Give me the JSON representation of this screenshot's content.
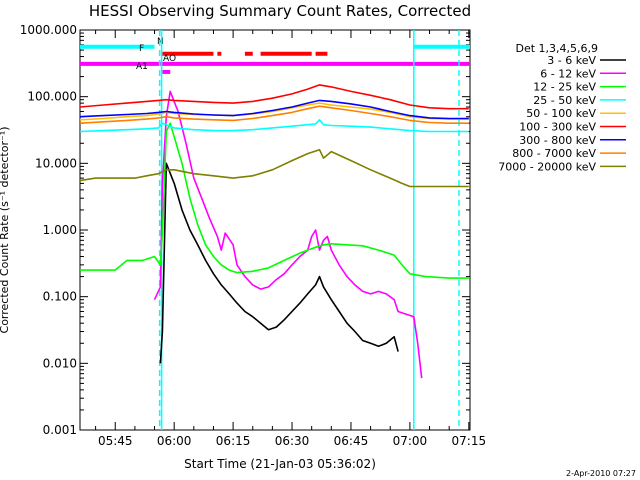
{
  "chart_data": {
    "type": "line",
    "title": "HESSI Observing Summary Count Rates, Corrected",
    "xlabel": "Start Time (21-Jan-03 05:36:02)",
    "ylabel": "Corrected Count Rate (s⁻¹ detector⁻¹)",
    "date_stamp": "2-Apr-2010 07:27",
    "y_scale": "log",
    "ylim": [
      0.001,
      1000
    ],
    "xlim_minutes": [
      36.03,
      135.3
    ],
    "x_ticks": [
      {
        "label": "05:45",
        "min": 45
      },
      {
        "label": "06:00",
        "min": 60
      },
      {
        "label": "06:15",
        "min": 75
      },
      {
        "label": "06:30",
        "min": 90
      },
      {
        "label": "06:45",
        "min": 105
      },
      {
        "label": "07:00",
        "min": 120
      },
      {
        "label": "07:15",
        "min": 135
      }
    ],
    "y_ticks": [
      {
        "label": "0.001",
        "value": 0.001
      },
      {
        "label": "0.010",
        "value": 0.01
      },
      {
        "label": "0.100",
        "value": 0.1
      },
      {
        "label": "1.000",
        "value": 1
      },
      {
        "label": "10.000",
        "value": 10
      },
      {
        "label": "100.000",
        "value": 100
      },
      {
        "label": "1000.000",
        "value": 1000
      }
    ],
    "legend_title": "Det 1,3,4,5,6,9",
    "legend_position": "right",
    "series": [
      {
        "name": "3 - 6 keV",
        "color": "#000000",
        "points": [
          [
            56.5,
            0.01
          ],
          [
            57,
            0.03
          ],
          [
            58,
            10
          ],
          [
            60,
            5
          ],
          [
            62,
            2
          ],
          [
            64,
            1
          ],
          [
            66,
            0.6
          ],
          [
            68,
            0.35
          ],
          [
            70,
            0.22
          ],
          [
            72,
            0.15
          ],
          [
            74,
            0.11
          ],
          [
            76,
            0.08
          ],
          [
            78,
            0.06
          ],
          [
            80,
            0.05
          ],
          [
            82,
            0.04
          ],
          [
            84,
            0.032
          ],
          [
            86,
            0.035
          ],
          [
            88,
            0.045
          ],
          [
            90,
            0.06
          ],
          [
            92,
            0.08
          ],
          [
            94,
            0.11
          ],
          [
            96,
            0.15
          ],
          [
            97,
            0.2
          ],
          [
            98,
            0.14
          ],
          [
            100,
            0.09
          ],
          [
            102,
            0.06
          ],
          [
            104,
            0.04
          ],
          [
            106,
            0.03
          ],
          [
            108,
            0.022
          ],
          [
            110,
            0.02
          ],
          [
            112,
            0.018
          ],
          [
            114,
            0.02
          ],
          [
            116,
            0.025
          ],
          [
            117,
            0.015
          ]
        ]
      },
      {
        "name": "6 - 12 keV",
        "color": "#ff00ff",
        "points": [
          [
            55,
            0.09
          ],
          [
            56.5,
            0.14
          ],
          [
            57,
            5
          ],
          [
            58,
            50
          ],
          [
            59,
            120
          ],
          [
            61,
            60
          ],
          [
            63,
            20
          ],
          [
            65,
            6
          ],
          [
            67,
            3
          ],
          [
            69,
            1.5
          ],
          [
            71,
            0.8
          ],
          [
            72,
            0.5
          ],
          [
            73,
            0.9
          ],
          [
            75,
            0.6
          ],
          [
            76,
            0.3
          ],
          [
            78,
            0.2
          ],
          [
            80,
            0.15
          ],
          [
            82,
            0.13
          ],
          [
            84,
            0.14
          ],
          [
            86,
            0.18
          ],
          [
            88,
            0.22
          ],
          [
            90,
            0.3
          ],
          [
            92,
            0.4
          ],
          [
            94,
            0.5
          ],
          [
            95,
            0.8
          ],
          [
            96,
            1.0
          ],
          [
            97,
            0.5
          ],
          [
            98,
            0.7
          ],
          [
            99,
            0.8
          ],
          [
            100,
            0.5
          ],
          [
            102,
            0.3
          ],
          [
            104,
            0.2
          ],
          [
            106,
            0.15
          ],
          [
            108,
            0.12
          ],
          [
            110,
            0.11
          ],
          [
            112,
            0.12
          ],
          [
            114,
            0.11
          ],
          [
            116,
            0.09
          ],
          [
            117,
            0.06
          ],
          [
            121,
            0.05
          ],
          [
            122,
            0.02
          ],
          [
            123,
            0.006
          ]
        ]
      },
      {
        "name": "12 - 25 keV",
        "color": "#00ff00",
        "points": [
          [
            36.03,
            0.25
          ],
          [
            40,
            0.25
          ],
          [
            45,
            0.25
          ],
          [
            48,
            0.35
          ],
          [
            52,
            0.35
          ],
          [
            55,
            0.4
          ],
          [
            56.5,
            0.3
          ],
          [
            57,
            0.9
          ],
          [
            58,
            30
          ],
          [
            59,
            40
          ],
          [
            60,
            25
          ],
          [
            62,
            10
          ],
          [
            64,
            3
          ],
          [
            66,
            1.2
          ],
          [
            68,
            0.6
          ],
          [
            70,
            0.4
          ],
          [
            72,
            0.3
          ],
          [
            74,
            0.25
          ],
          [
            76,
            0.23
          ],
          [
            80,
            0.24
          ],
          [
            84,
            0.27
          ],
          [
            88,
            0.35
          ],
          [
            92,
            0.45
          ],
          [
            94,
            0.5
          ],
          [
            96,
            0.55
          ],
          [
            98,
            0.6
          ],
          [
            100,
            0.62
          ],
          [
            104,
            0.6
          ],
          [
            108,
            0.58
          ],
          [
            112,
            0.5
          ],
          [
            116,
            0.42
          ],
          [
            118,
            0.3
          ],
          [
            120,
            0.22
          ],
          [
            124,
            0.2
          ],
          [
            130,
            0.19
          ],
          [
            135,
            0.19
          ]
        ]
      },
      {
        "name": "25 - 50 keV",
        "color": "#00ffff",
        "points": [
          [
            36.03,
            30
          ],
          [
            42,
            31
          ],
          [
            48,
            32
          ],
          [
            53,
            33
          ],
          [
            56,
            34
          ],
          [
            57,
            40
          ],
          [
            58,
            38
          ],
          [
            60,
            34
          ],
          [
            65,
            32
          ],
          [
            70,
            31
          ],
          [
            75,
            31
          ],
          [
            80,
            32
          ],
          [
            85,
            34
          ],
          [
            90,
            36
          ],
          [
            94,
            38
          ],
          [
            96,
            39
          ],
          [
            97,
            45
          ],
          [
            98,
            38
          ],
          [
            100,
            37
          ],
          [
            105,
            36
          ],
          [
            110,
            35
          ],
          [
            115,
            33
          ],
          [
            120,
            31
          ],
          [
            125,
            30
          ],
          [
            130,
            30
          ],
          [
            135,
            30
          ]
        ]
      },
      {
        "name": "50 - 100 keV",
        "color": "#ffbf00",
        "points": [
          [
            36.03,
            45
          ],
          [
            42,
            47
          ],
          [
            48,
            50
          ],
          [
            53,
            52
          ],
          [
            56,
            55
          ],
          [
            58,
            58
          ],
          [
            60,
            56
          ],
          [
            65,
            54
          ],
          [
            70,
            53
          ],
          [
            75,
            52
          ],
          [
            80,
            55
          ],
          [
            85,
            60
          ],
          [
            90,
            68
          ],
          [
            94,
            75
          ],
          [
            97,
            80
          ],
          [
            100,
            75
          ],
          [
            105,
            70
          ],
          [
            110,
            65
          ],
          [
            115,
            58
          ],
          [
            120,
            50
          ],
          [
            125,
            47
          ],
          [
            130,
            46
          ],
          [
            135,
            46
          ]
        ]
      },
      {
        "name": "100 - 300 keV",
        "color": "#ff0000",
        "points": [
          [
            36.03,
            70
          ],
          [
            42,
            75
          ],
          [
            48,
            80
          ],
          [
            53,
            85
          ],
          [
            56,
            88
          ],
          [
            58,
            90
          ],
          [
            60,
            88
          ],
          [
            65,
            85
          ],
          [
            70,
            82
          ],
          [
            75,
            80
          ],
          [
            80,
            85
          ],
          [
            85,
            95
          ],
          [
            90,
            110
          ],
          [
            94,
            130
          ],
          [
            97,
            150
          ],
          [
            100,
            140
          ],
          [
            105,
            120
          ],
          [
            110,
            105
          ],
          [
            115,
            90
          ],
          [
            120,
            75
          ],
          [
            125,
            68
          ],
          [
            130,
            66
          ],
          [
            135,
            66
          ]
        ]
      },
      {
        "name": "300 - 800 keV",
        "color": "#0000ff",
        "points": [
          [
            36.03,
            50
          ],
          [
            42,
            52
          ],
          [
            48,
            54
          ],
          [
            53,
            56
          ],
          [
            56,
            58
          ],
          [
            58,
            60
          ],
          [
            60,
            58
          ],
          [
            65,
            55
          ],
          [
            70,
            53
          ],
          [
            75,
            52
          ],
          [
            80,
            56
          ],
          [
            85,
            62
          ],
          [
            90,
            70
          ],
          [
            94,
            80
          ],
          [
            97,
            88
          ],
          [
            100,
            85
          ],
          [
            105,
            78
          ],
          [
            110,
            70
          ],
          [
            115,
            60
          ],
          [
            120,
            52
          ],
          [
            125,
            48
          ],
          [
            130,
            47
          ],
          [
            135,
            47
          ]
        ]
      },
      {
        "name": "800 - 7000 keV",
        "color": "#ff7f00",
        "points": [
          [
            36.03,
            40
          ],
          [
            42,
            42
          ],
          [
            48,
            44
          ],
          [
            53,
            46
          ],
          [
            56,
            48
          ],
          [
            58,
            50
          ],
          [
            60,
            48
          ],
          [
            65,
            46
          ],
          [
            70,
            45
          ],
          [
            75,
            44
          ],
          [
            80,
            47
          ],
          [
            85,
            52
          ],
          [
            90,
            58
          ],
          [
            94,
            66
          ],
          [
            97,
            72
          ],
          [
            100,
            68
          ],
          [
            105,
            62
          ],
          [
            110,
            56
          ],
          [
            115,
            50
          ],
          [
            120,
            44
          ],
          [
            125,
            41
          ],
          [
            130,
            40
          ],
          [
            135,
            40
          ]
        ]
      },
      {
        "name": "7000 - 20000 keV",
        "color": "#7f7f00",
        "points": [
          [
            36.03,
            5.5
          ],
          [
            40,
            6
          ],
          [
            45,
            6
          ],
          [
            50,
            6
          ],
          [
            53,
            6.5
          ],
          [
            56,
            7
          ],
          [
            58,
            8
          ],
          [
            60,
            8
          ],
          [
            65,
            7
          ],
          [
            70,
            6.5
          ],
          [
            75,
            6
          ],
          [
            80,
            6.5
          ],
          [
            85,
            8
          ],
          [
            90,
            11
          ],
          [
            94,
            14
          ],
          [
            97,
            16
          ],
          [
            98,
            12
          ],
          [
            100,
            15
          ],
          [
            105,
            11
          ],
          [
            110,
            8
          ],
          [
            115,
            6
          ],
          [
            118,
            5
          ],
          [
            120,
            4.5
          ],
          [
            125,
            4.5
          ],
          [
            130,
            4.5
          ],
          [
            135,
            4.5
          ]
        ]
      }
    ],
    "annotations": [
      {
        "label": "N",
        "color": "#00ffff",
        "segments": [
          [
            36.03,
            55
          ],
          [
            121,
            135.3
          ]
        ],
        "level": 560
      },
      {
        "label": "F",
        "color": "#ff0000",
        "segments": [
          [
            57,
            70
          ],
          [
            71,
            72
          ],
          [
            78,
            80
          ],
          [
            82,
            95
          ],
          [
            96,
            99
          ]
        ],
        "level": 440
      },
      {
        "label": "",
        "color": "#ff00ff",
        "segments": [
          [
            36.03,
            135.3
          ]
        ],
        "level": 310
      },
      {
        "label": "AO",
        "color": "#ff00ff",
        "segments": [],
        "level": 0
      },
      {
        "label": "A1",
        "color": "#ff00ff",
        "segments": [
          [
            57,
            59
          ]
        ],
        "level": 235
      }
    ],
    "vertical_lines": [
      {
        "min": 56.3,
        "color": "#00ffff",
        "style": "dashed"
      },
      {
        "min": 56.8,
        "color": "#00ffff",
        "style": "solid"
      },
      {
        "min": 121,
        "color": "#00ffff",
        "style": "solid"
      },
      {
        "min": 132.5,
        "color": "#00ffff",
        "style": "dashed"
      }
    ]
  }
}
